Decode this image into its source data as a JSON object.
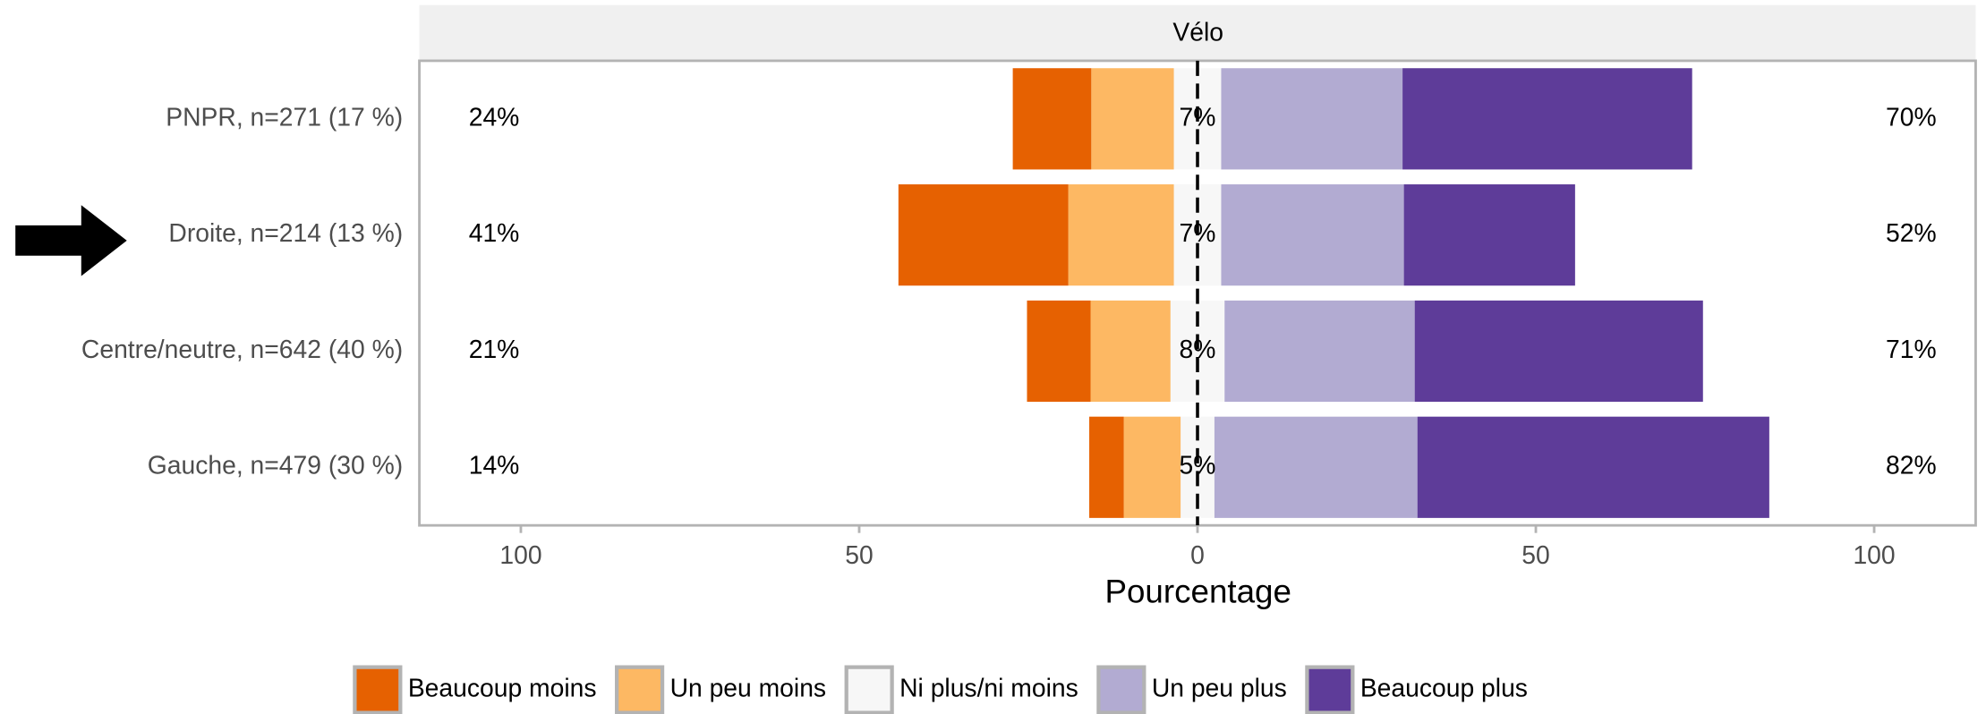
{
  "chart_data": {
    "type": "diverging_bar",
    "title": "Vélo",
    "x_label": "Pourcentage",
    "categories": [
      "PNPR, n=271 (17 %)",
      "Droite, n=214 (13 %)",
      "Centre/neutre, n=642 (40 %)",
      "Gauche, n=479 (30 %)"
    ],
    "series": [
      {
        "name": "Beaucoup moins",
        "color": "#e66101",
        "side": "left",
        "values": [
          11.6,
          25.1,
          9.4,
          5.1
        ]
      },
      {
        "name": "Un peu moins",
        "color": "#fdb863",
        "side": "left",
        "values": [
          12.2,
          15.6,
          11.8,
          8.4
        ]
      },
      {
        "name": "Ni plus/ni moins",
        "color": "#f7f7f7",
        "side": "center",
        "values": [
          7,
          7,
          8,
          5
        ],
        "value_labels": [
          "7%",
          "7%",
          "8%",
          "5%"
        ]
      },
      {
        "name": "Un peu plus",
        "color": "#b2abd2",
        "side": "right",
        "values": [
          26.8,
          27,
          28.1,
          30
        ]
      },
      {
        "name": "Beaucoup plus",
        "color": "#5e3c99",
        "side": "right",
        "values": [
          42.8,
          25.3,
          42.6,
          52
        ]
      }
    ],
    "left_totals": {
      "values": [
        24,
        41,
        21,
        14
      ],
      "value_labels": [
        "24%",
        "41%",
        "21%",
        "14%"
      ]
    },
    "right_totals": {
      "values": [
        70,
        52,
        71,
        82
      ],
      "value_labels": [
        "70%",
        "52%",
        "71%",
        "82%"
      ]
    },
    "xlim": [
      -115,
      115
    ],
    "xticks": [
      {
        "value": -100,
        "label": "100"
      },
      {
        "value": -50,
        "label": "50"
      },
      0,
      50,
      100
    ],
    "grid": false,
    "legend": "bottom"
  }
}
